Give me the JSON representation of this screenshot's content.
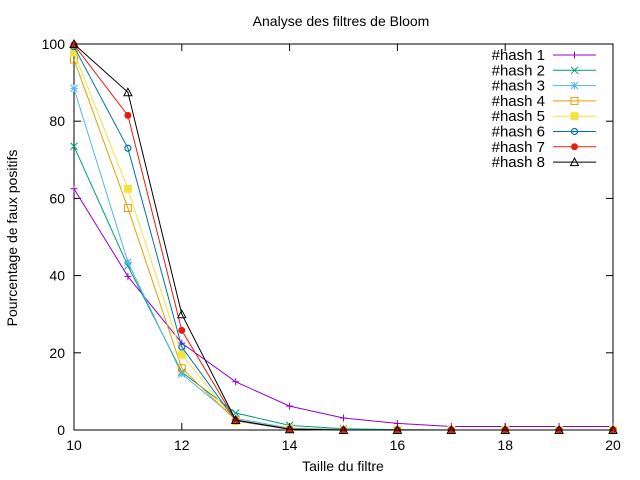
{
  "chart_data": {
    "type": "line",
    "title": "Analyse des filtres de Bloom",
    "xlabel": "Taille du filtre",
    "ylabel": "Pourcentage de faux positifs",
    "xlim": [
      10,
      20
    ],
    "ylim": [
      0,
      100
    ],
    "xticks": [
      10,
      12,
      14,
      16,
      18,
      20
    ],
    "yticks": [
      0,
      20,
      40,
      60,
      80,
      100
    ],
    "grid": false,
    "legend_position": "top-right",
    "x": [
      10,
      11,
      12,
      13,
      14,
      15,
      16,
      17,
      18,
      19,
      20
    ],
    "series": [
      {
        "name": "#hash 1",
        "color": "#9400d3",
        "marker": "plus",
        "values": [
          62.5,
          39.8,
          22.5,
          12.5,
          6.2,
          3.1,
          1.7,
          0.9,
          0.9,
          0.9,
          0.9
        ]
      },
      {
        "name": "#hash 2",
        "color": "#009e73",
        "marker": "cross",
        "values": [
          73.5,
          42.5,
          15.0,
          4.4,
          1.2,
          0.3,
          0.1,
          0.0,
          0.0,
          0.0,
          0.0
        ]
      },
      {
        "name": "#hash 3",
        "color": "#56b4e9",
        "marker": "star",
        "values": [
          88.5,
          43.5,
          14.5,
          3.0,
          0.5,
          0.1,
          0.0,
          0.0,
          0.0,
          0.0,
          0.0
        ]
      },
      {
        "name": "#hash 4",
        "color": "#e69f00",
        "marker": "box",
        "values": [
          96.0,
          57.5,
          16.0,
          2.5,
          0.3,
          0.0,
          0.0,
          0.0,
          0.0,
          0.0,
          0.0
        ]
      },
      {
        "name": "#hash 5",
        "color": "#f0e442",
        "marker": "filled-box",
        "values": [
          97.8,
          62.5,
          19.5,
          2.3,
          0.2,
          0.0,
          0.0,
          0.0,
          0.0,
          0.0,
          0.0
        ]
      },
      {
        "name": "#hash 6",
        "color": "#0072b2",
        "marker": "circle",
        "values": [
          99.3,
          73.0,
          21.5,
          2.4,
          0.2,
          0.0,
          0.0,
          0.0,
          0.0,
          0.0,
          0.0
        ]
      },
      {
        "name": "#hash 7",
        "color": "#e51e10",
        "marker": "filled-circle",
        "values": [
          99.8,
          81.5,
          25.8,
          2.5,
          0.2,
          0.0,
          0.0,
          0.0,
          0.0,
          0.0,
          0.0
        ]
      },
      {
        "name": "#hash 8",
        "color": "#000000",
        "marker": "triangle",
        "values": [
          100.0,
          87.5,
          30.0,
          2.6,
          0.2,
          0.0,
          0.0,
          0.0,
          0.0,
          0.0,
          0.0
        ]
      }
    ]
  }
}
